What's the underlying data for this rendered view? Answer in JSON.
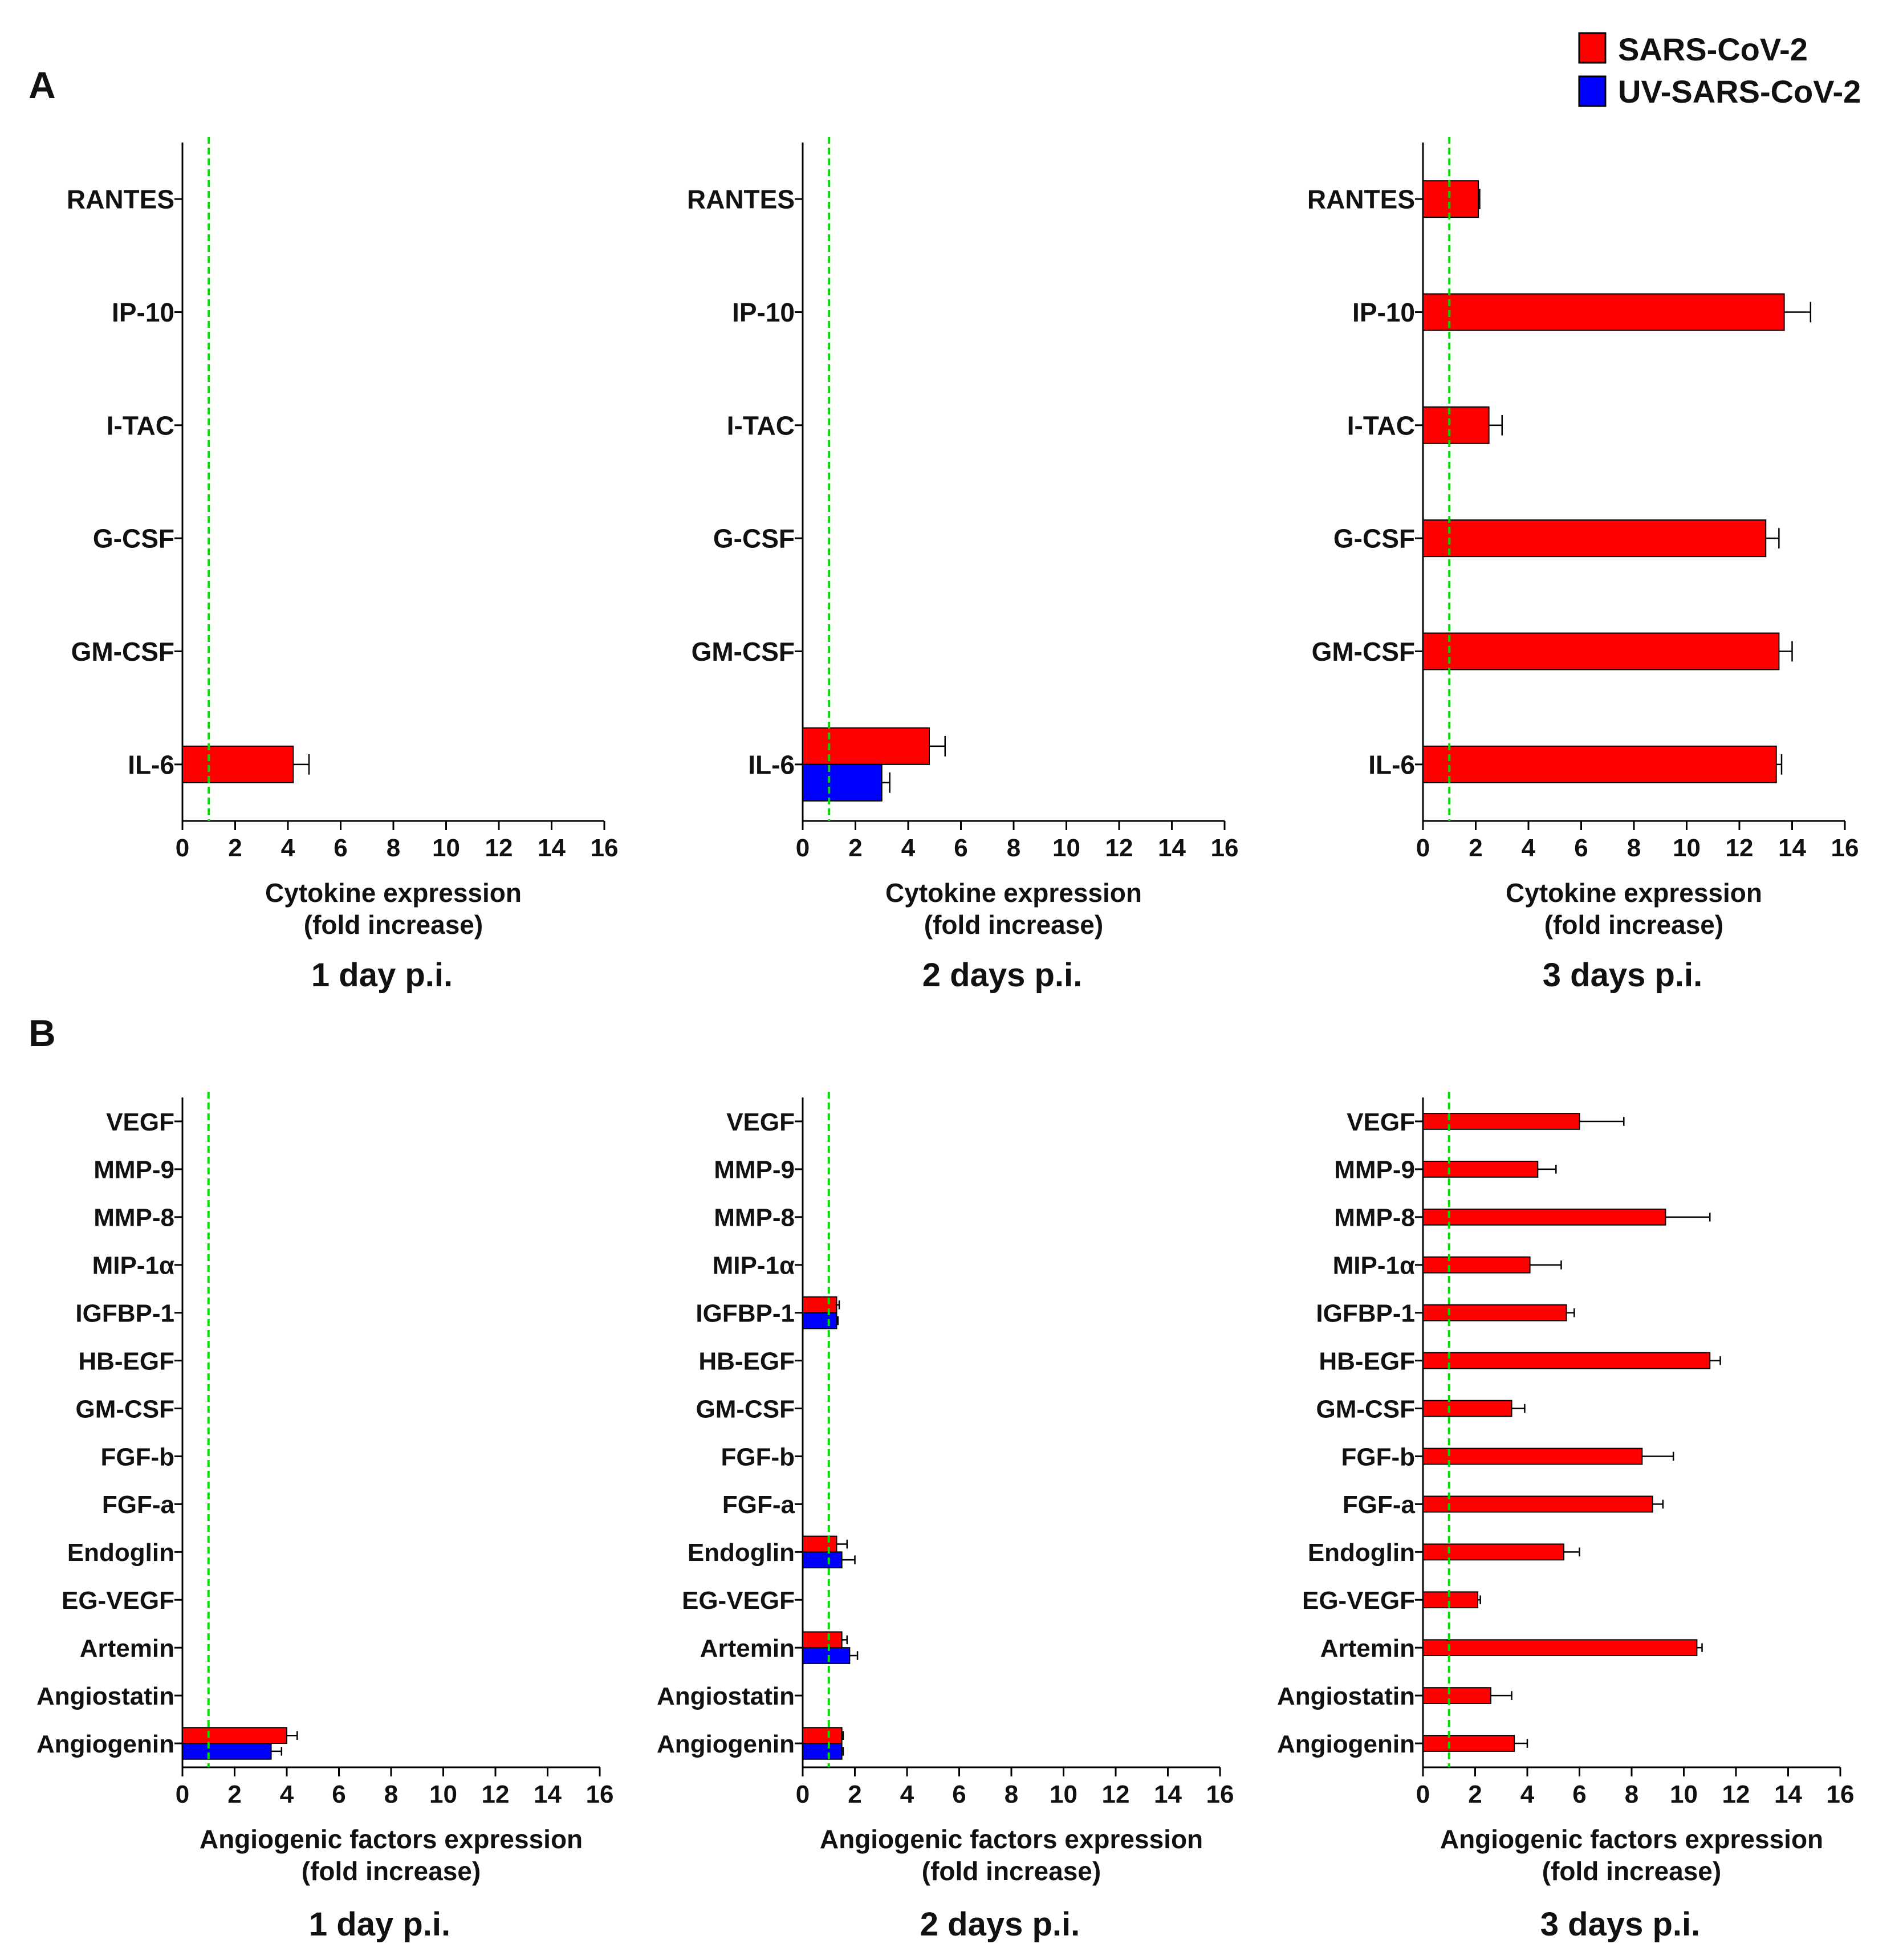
{
  "figure": {
    "panel_letters": [
      "A",
      "B"
    ],
    "legend": [
      {
        "label": "SARS-CoV-2",
        "color": "#ff0000"
      },
      {
        "label": "UV-SARS-CoV-2",
        "color": "#0000ff"
      }
    ],
    "reference_line": {
      "value": 1,
      "color": "#00e000",
      "style": "dashed"
    },
    "tick_values": [
      0,
      2,
      4,
      6,
      8,
      10,
      12,
      14,
      16
    ]
  },
  "chart_data": [
    {
      "type": "bar",
      "orientation": "horizontal",
      "panel": "A",
      "title": "1 day p.i.",
      "xlabel": [
        "Cytokine expression",
        "(fold increase)"
      ],
      "xlim": [
        0,
        16
      ],
      "categories": [
        "RANTES",
        "IP-10",
        "I-TAC",
        "G-CSF",
        "GM-CSF",
        "IL-6"
      ],
      "series": [
        {
          "name": "SARS-CoV-2",
          "color": "#ff0000",
          "values": [
            null,
            null,
            null,
            null,
            null,
            4.2
          ],
          "errors": [
            null,
            null,
            null,
            null,
            null,
            0.6
          ]
        }
      ]
    },
    {
      "type": "bar",
      "orientation": "horizontal",
      "panel": "A",
      "title": "2 days p.i.",
      "xlabel": [
        "Cytokine expression",
        "(fold increase)"
      ],
      "xlim": [
        0,
        16
      ],
      "categories": [
        "RANTES",
        "IP-10",
        "I-TAC",
        "G-CSF",
        "GM-CSF",
        "IL-6"
      ],
      "series": [
        {
          "name": "SARS-CoV-2",
          "color": "#ff0000",
          "values": [
            null,
            null,
            null,
            null,
            null,
            4.8
          ],
          "errors": [
            null,
            null,
            null,
            null,
            null,
            0.6
          ]
        },
        {
          "name": "UV-SARS-CoV-2",
          "color": "#0000ff",
          "values": [
            null,
            null,
            null,
            null,
            null,
            3.0
          ],
          "errors": [
            null,
            null,
            null,
            null,
            null,
            0.3
          ]
        }
      ]
    },
    {
      "type": "bar",
      "orientation": "horizontal",
      "panel": "A",
      "title": "3 days p.i.",
      "xlabel": [
        "Cytokine expression",
        "(fold increase)"
      ],
      "xlim": [
        0,
        16
      ],
      "categories": [
        "RANTES",
        "IP-10",
        "I-TAC",
        "G-CSF",
        "GM-CSF",
        "IL-6"
      ],
      "series": [
        {
          "name": "SARS-CoV-2",
          "color": "#ff0000",
          "values": [
            2.1,
            13.7,
            2.5,
            13.0,
            13.5,
            13.4
          ],
          "errors": [
            0.05,
            1.0,
            0.5,
            0.5,
            0.5,
            0.2
          ]
        }
      ]
    },
    {
      "type": "bar",
      "orientation": "horizontal",
      "panel": "B",
      "title": "1 day p.i.",
      "xlabel": [
        "Angiogenic factors expression",
        "(fold increase)"
      ],
      "xlim": [
        0,
        16
      ],
      "categories": [
        "VEGF",
        "MMP-9",
        "MMP-8",
        "MIP-1α",
        "IGFBP-1",
        "HB-EGF",
        "GM-CSF",
        "FGF-b",
        "FGF-a",
        "Endoglin",
        "EG-VEGF",
        "Artemin",
        "Angiostatin",
        "Angiogenin"
      ],
      "series": [
        {
          "name": "SARS-CoV-2",
          "color": "#ff0000",
          "values": [
            null,
            null,
            null,
            null,
            null,
            null,
            null,
            null,
            null,
            null,
            null,
            null,
            null,
            4.0
          ],
          "errors": [
            null,
            null,
            null,
            null,
            null,
            null,
            null,
            null,
            null,
            null,
            null,
            null,
            null,
            0.4
          ]
        },
        {
          "name": "UV-SARS-CoV-2",
          "color": "#0000ff",
          "values": [
            null,
            null,
            null,
            null,
            null,
            null,
            null,
            null,
            null,
            null,
            null,
            null,
            null,
            3.4
          ],
          "errors": [
            null,
            null,
            null,
            null,
            null,
            null,
            null,
            null,
            null,
            null,
            null,
            null,
            null,
            0.4
          ]
        }
      ]
    },
    {
      "type": "bar",
      "orientation": "horizontal",
      "panel": "B",
      "title": "2 days p.i.",
      "xlabel": [
        "Angiogenic factors expression",
        "(fold increase)"
      ],
      "xlim": [
        0,
        16
      ],
      "categories": [
        "VEGF",
        "MMP-9",
        "MMP-8",
        "MIP-1α",
        "IGFBP-1",
        "HB-EGF",
        "GM-CSF",
        "FGF-b",
        "FGF-a",
        "Endoglin",
        "EG-VEGF",
        "Artemin",
        "Angiostatin",
        "Angiogenin"
      ],
      "series": [
        {
          "name": "SARS-CoV-2",
          "color": "#ff0000",
          "values": [
            null,
            null,
            null,
            null,
            1.3,
            null,
            null,
            null,
            null,
            1.3,
            null,
            1.5,
            null,
            1.5
          ],
          "errors": [
            null,
            null,
            null,
            null,
            0.1,
            null,
            null,
            null,
            null,
            0.4,
            null,
            0.2,
            null,
            0.05
          ]
        },
        {
          "name": "UV-SARS-CoV-2",
          "color": "#0000ff",
          "values": [
            null,
            null,
            null,
            null,
            1.3,
            null,
            null,
            null,
            null,
            1.5,
            null,
            1.8,
            null,
            1.5
          ],
          "errors": [
            null,
            null,
            null,
            null,
            0.05,
            null,
            null,
            null,
            null,
            0.5,
            null,
            0.3,
            null,
            0.05
          ]
        }
      ]
    },
    {
      "type": "bar",
      "orientation": "horizontal",
      "panel": "B",
      "title": "3 days p.i.",
      "xlabel": [
        "Angiogenic factors expression",
        "(fold increase)"
      ],
      "xlim": [
        0,
        16
      ],
      "categories": [
        "VEGF",
        "MMP-9",
        "MMP-8",
        "MIP-1α",
        "IGFBP-1",
        "HB-EGF",
        "GM-CSF",
        "FGF-b",
        "FGF-a",
        "Endoglin",
        "EG-VEGF",
        "Artemin",
        "Angiostatin",
        "Angiogenin"
      ],
      "series": [
        {
          "name": "SARS-CoV-2",
          "color": "#ff0000",
          "values": [
            6.0,
            4.4,
            9.3,
            4.1,
            5.5,
            11.0,
            3.4,
            8.4,
            8.8,
            5.4,
            2.1,
            10.5,
            2.6,
            3.5
          ],
          "errors": [
            1.7,
            0.7,
            1.7,
            1.2,
            0.3,
            0.4,
            0.5,
            1.2,
            0.4,
            0.6,
            0.1,
            0.2,
            0.8,
            0.5
          ]
        }
      ]
    }
  ]
}
